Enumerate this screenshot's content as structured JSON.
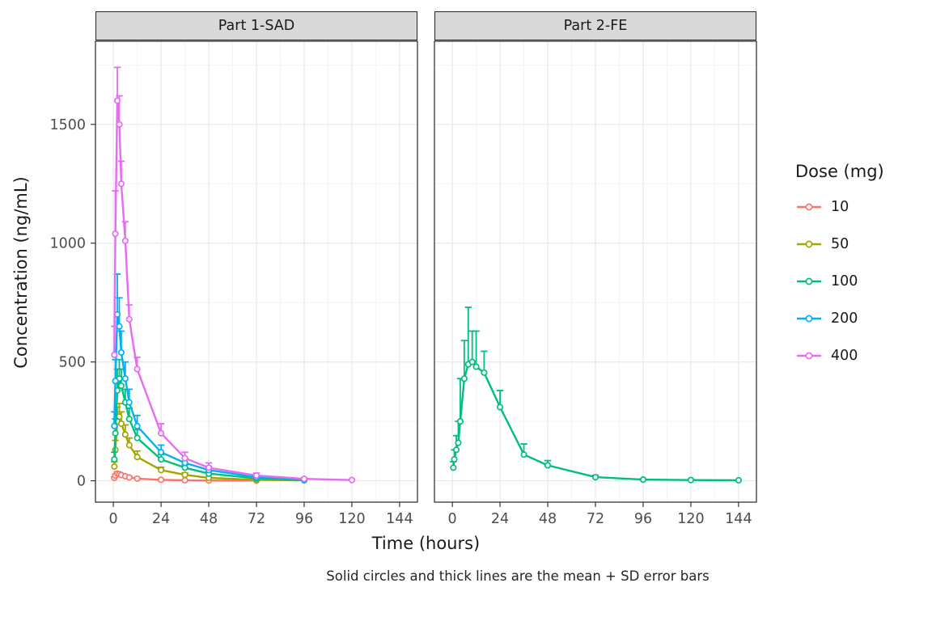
{
  "figure": {
    "facets": [
      {
        "label": "Part 1-SAD"
      },
      {
        "label": "Part 2-FE"
      }
    ],
    "x_title": "Time (hours)",
    "y_title": "Concentration (ng/mL)",
    "caption": "Solid circles and thick lines are the mean + SD error bars",
    "legend": {
      "title": "Dose (mg)",
      "entries": [
        {
          "label": "10",
          "color": "#F8766D"
        },
        {
          "label": "50",
          "color": "#A3A500"
        },
        {
          "label": "100",
          "color": "#00BF7D"
        },
        {
          "label": "200",
          "color": "#00B0F6"
        },
        {
          "label": "400",
          "color": "#E76BF3"
        }
      ]
    }
  },
  "chart_data": {
    "type": "line",
    "title": "",
    "xlabel": "Time (hours)",
    "ylabel": "Concentration (ng/mL)",
    "xlim": [
      -9,
      153
    ],
    "ylim": [
      -90,
      1850
    ],
    "x_ticks": [
      0,
      24,
      48,
      72,
      96,
      120,
      144
    ],
    "y_ticks": [
      0,
      500,
      1000,
      1500
    ],
    "y_minor": [
      250,
      750,
      1250,
      1750
    ],
    "x_minor": [
      12,
      36,
      60,
      84,
      108,
      132
    ],
    "grid": true,
    "legend_position": "right",
    "error_bars": "mean + SD (upper)",
    "point_format": [
      [
        "time_h",
        "mean_ng_mL",
        "sd_ng_mL"
      ]
    ],
    "panels": [
      {
        "facet": "Part 1-SAD",
        "series": [
          {
            "name": "10",
            "color": "#F8766D",
            "points": [
              [
                0.5,
                12,
                4
              ],
              [
                1,
                22,
                6
              ],
              [
                2,
                30,
                8
              ],
              [
                3,
                28,
                7
              ],
              [
                4,
                24,
                6
              ],
              [
                6,
                19,
                5
              ],
              [
                8,
                14,
                4
              ],
              [
                12,
                9,
                3
              ],
              [
                24,
                4,
                1.5
              ],
              [
                36,
                2,
                1
              ],
              [
                48,
                1,
                0.5
              ],
              [
                72,
                0.5,
                0.3
              ]
            ]
          },
          {
            "name": "50",
            "color": "#A3A500",
            "points": [
              [
                0.5,
                60,
                20
              ],
              [
                1,
                130,
                40
              ],
              [
                2,
                250,
                60
              ],
              [
                3,
                270,
                55
              ],
              [
                4,
                240,
                50
              ],
              [
                6,
                195,
                40
              ],
              [
                8,
                150,
                30
              ],
              [
                12,
                100,
                25
              ],
              [
                24,
                45,
                12
              ],
              [
                36,
                25,
                8
              ],
              [
                48,
                12,
                5
              ],
              [
                72,
                4,
                2
              ],
              [
                96,
                1.5,
                1
              ]
            ]
          },
          {
            "name": "100",
            "color": "#00BF7D",
            "points": [
              [
                0.5,
                90,
                30
              ],
              [
                1,
                200,
                60
              ],
              [
                2,
                380,
                90
              ],
              [
                3,
                430,
                80
              ],
              [
                4,
                400,
                70
              ],
              [
                6,
                330,
                55
              ],
              [
                8,
                260,
                45
              ],
              [
                12,
                180,
                35
              ],
              [
                24,
                90,
                20
              ],
              [
                36,
                55,
                12
              ],
              [
                48,
                30,
                8
              ],
              [
                72,
                10,
                4
              ],
              [
                96,
                3,
                2
              ]
            ]
          },
          {
            "name": "200",
            "color": "#00B0F6",
            "points": [
              [
                0.5,
                230,
                60
              ],
              [
                1,
                420,
                90
              ],
              [
                2,
                700,
                170
              ],
              [
                3,
                650,
                120
              ],
              [
                4,
                540,
                90
              ],
              [
                6,
                430,
                70
              ],
              [
                8,
                330,
                55
              ],
              [
                12,
                230,
                45
              ],
              [
                24,
                120,
                30
              ],
              [
                36,
                75,
                20
              ],
              [
                48,
                45,
                15
              ],
              [
                72,
                15,
                8
              ],
              [
                96,
                5,
                3
              ]
            ]
          },
          {
            "name": "400",
            "color": "#E76BF3",
            "points": [
              [
                0.5,
                530,
                120
              ],
              [
                1,
                1040,
                180
              ],
              [
                2,
                1600,
                140
              ],
              [
                3,
                1500,
                120
              ],
              [
                4,
                1250,
                95
              ],
              [
                6,
                1010,
                80
              ],
              [
                8,
                680,
                60
              ],
              [
                12,
                470,
                50
              ],
              [
                24,
                200,
                40
              ],
              [
                36,
                95,
                25
              ],
              [
                48,
                55,
                20
              ],
              [
                72,
                22,
                10
              ],
              [
                96,
                8,
                4
              ],
              [
                120,
                3,
                2
              ]
            ]
          }
        ]
      },
      {
        "facet": "Part 2-FE",
        "series": [
          {
            "name": "100",
            "color": "#00BF7D",
            "points": [
              [
                0.5,
                55,
                25
              ],
              [
                1,
                90,
                40
              ],
              [
                2,
                130,
                60
              ],
              [
                3,
                160,
                90
              ],
              [
                4,
                250,
                180
              ],
              [
                6,
                430,
                160
              ],
              [
                8,
                490,
                240
              ],
              [
                10,
                500,
                130
              ],
              [
                12,
                480,
                150
              ],
              [
                16,
                455,
                90
              ],
              [
                24,
                310,
                70
              ],
              [
                36,
                110,
                45
              ],
              [
                48,
                65,
                20
              ],
              [
                72,
                15,
                8
              ],
              [
                96,
                5,
                3
              ],
              [
                120,
                3,
                2
              ],
              [
                144,
                2,
                1
              ]
            ]
          }
        ]
      }
    ]
  }
}
